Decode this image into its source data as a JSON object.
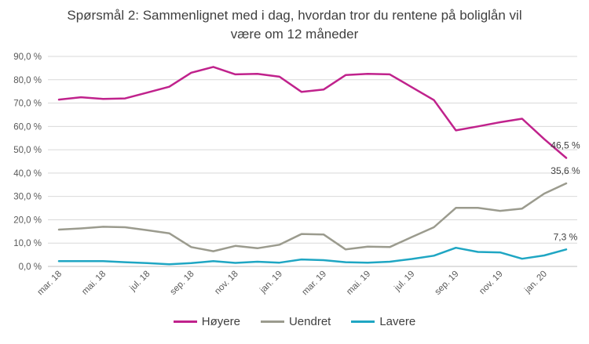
{
  "chart_data": {
    "type": "line",
    "title_line1": "Spørsmål 2: Sammenlignet  med i dag, hvordan tror du rentene på boliglån vil",
    "title_line2": "være om 12 måneder",
    "ylim": [
      0,
      90
    ],
    "y_ticks": [
      "0,0 %",
      "10,0 %",
      "20,0 %",
      "30,0 %",
      "40,0 %",
      "50,0 %",
      "60,0 %",
      "70,0 %",
      "80,0 %",
      "90,0 %"
    ],
    "x_tick_labels": [
      "mar. 18",
      "mai. 18",
      "jul. 18",
      "sep. 18",
      "nov. 18",
      "jan. 19",
      "mar. 19",
      "mai. 19",
      "jul. 19",
      "sep. 19",
      "nov. 19",
      "jan. 20"
    ],
    "x": [
      "mar. 18",
      "apr. 18",
      "mai. 18",
      "jun. 18",
      "jul. 18",
      "aug. 18",
      "sep. 18",
      "okt. 18",
      "nov. 18",
      "des. 18",
      "jan. 19",
      "feb. 19",
      "mar. 19",
      "apr. 19",
      "mai. 19",
      "jun. 19",
      "jul. 19",
      "aug. 19",
      "sep. 19",
      "okt. 19",
      "nov. 19",
      "des. 19",
      "jan. 20",
      "feb. 20"
    ],
    "series": [
      {
        "name": "Høyere",
        "color": "#C0228C",
        "values": [
          71.5,
          72.5,
          71.8,
          72.0,
          74.5,
          77.0,
          83.0,
          85.5,
          82.3,
          82.5,
          81.3,
          74.8,
          75.8,
          82.0,
          82.5,
          82.3,
          76.8,
          71.3,
          58.3,
          60.0,
          61.8,
          63.3,
          54.6,
          46.5
        ],
        "end_label": "46,5 %"
      },
      {
        "name": "Uendret",
        "color": "#9B9B8E",
        "values": [
          15.8,
          16.3,
          17.0,
          16.8,
          15.5,
          14.2,
          8.3,
          6.5,
          8.8,
          7.8,
          9.3,
          13.9,
          13.7,
          7.3,
          8.5,
          8.3,
          12.6,
          16.8,
          25.1,
          25.1,
          23.8,
          24.8,
          31.2,
          35.6
        ],
        "end_label": "35,6 %"
      },
      {
        "name": "Lavere",
        "color": "#1FA6C3",
        "values": [
          2.3,
          2.3,
          2.3,
          1.8,
          1.4,
          0.9,
          1.4,
          2.3,
          1.5,
          2.0,
          1.6,
          3.0,
          2.7,
          1.8,
          1.6,
          2.0,
          3.2,
          4.6,
          8.0,
          6.2,
          6.0,
          3.3,
          4.7,
          7.3
        ],
        "end_label": "7,3 %"
      }
    ],
    "legend_position": "bottom",
    "grid": true
  }
}
